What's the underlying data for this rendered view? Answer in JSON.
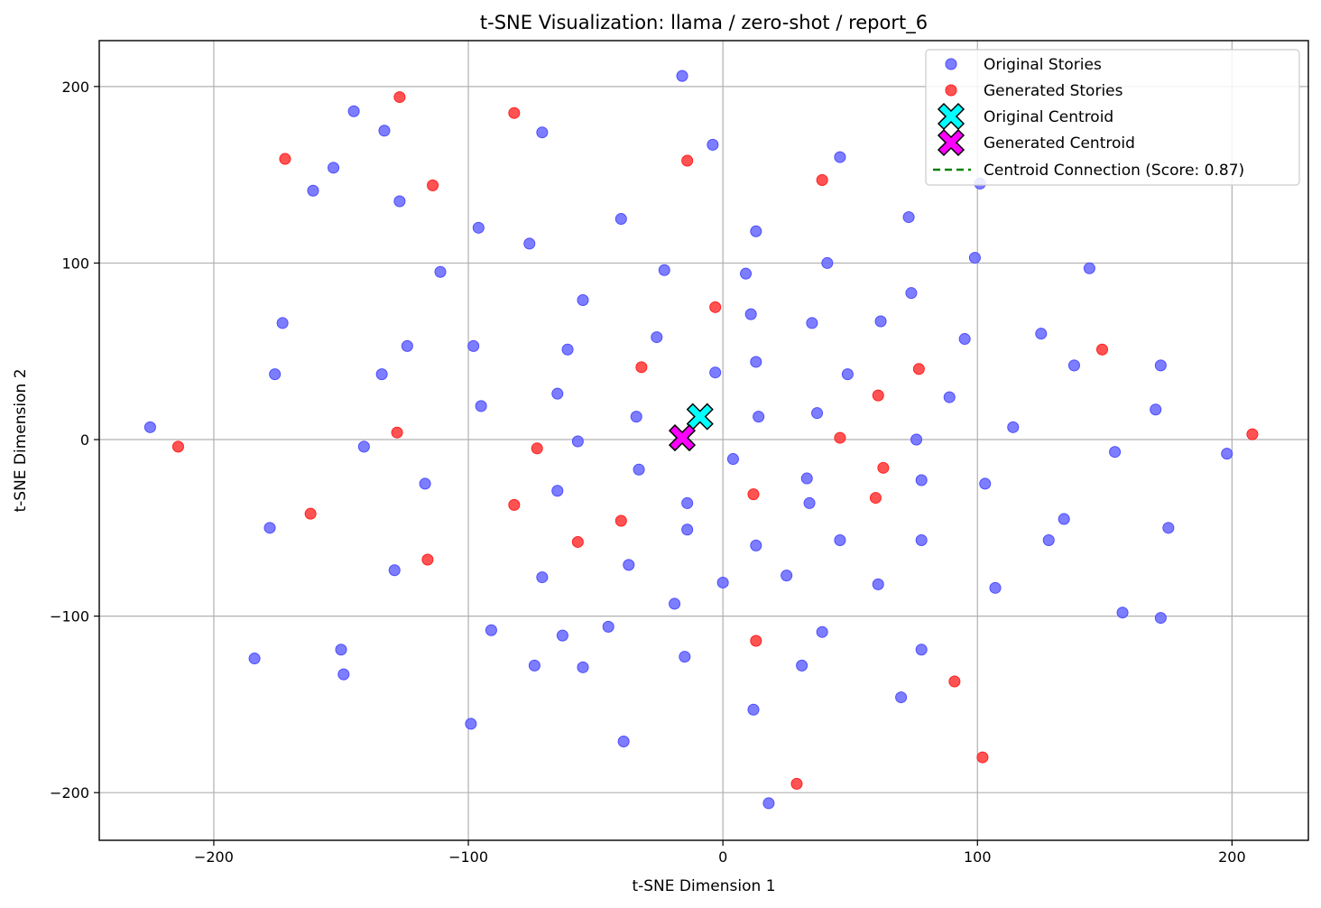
{
  "chart_data": {
    "type": "scatter",
    "title": "t-SNE Visualization: llama / zero-shot / report_6",
    "xlabel": "t-SNE Dimension 1",
    "ylabel": "t-SNE Dimension 2",
    "xlim": [
      -245,
      230
    ],
    "ylim": [
      -227,
      226
    ],
    "xticks": [
      -200,
      -100,
      0,
      100,
      200
    ],
    "yticks": [
      -200,
      -100,
      0,
      100,
      200
    ],
    "xtick_labels": [
      "−200",
      "−100",
      "0",
      "100",
      "200"
    ],
    "ytick_labels": [
      "−200",
      "−100",
      "0",
      "100",
      "200"
    ],
    "grid": true,
    "legend_position": "top-right",
    "colors": {
      "original": "#6666ff",
      "generated": "#ff4040",
      "original_centroid": "#00ffff",
      "generated_centroid": "#ff00ff",
      "connection": "#008000"
    },
    "series": [
      {
        "name": "Original Stories",
        "points": [
          [
            -16,
            206
          ],
          [
            -4,
            167
          ],
          [
            -71,
            174
          ],
          [
            -133,
            175
          ],
          [
            -145,
            186
          ],
          [
            -153,
            154
          ],
          [
            -161,
            141
          ],
          [
            -127,
            135
          ],
          [
            46,
            160
          ],
          [
            101,
            145
          ],
          [
            -96,
            120
          ],
          [
            -76,
            111
          ],
          [
            -40,
            125
          ],
          [
            13,
            118
          ],
          [
            73,
            126
          ],
          [
            -111,
            95
          ],
          [
            -23,
            96
          ],
          [
            9,
            94
          ],
          [
            41,
            100
          ],
          [
            99,
            103
          ],
          [
            144,
            97
          ],
          [
            -55,
            79
          ],
          [
            -173,
            66
          ],
          [
            11,
            71
          ],
          [
            35,
            66
          ],
          [
            62,
            67
          ],
          [
            74,
            83
          ],
          [
            -26,
            58
          ],
          [
            -98,
            53
          ],
          [
            -61,
            51
          ],
          [
            -124,
            53
          ],
          [
            95,
            57
          ],
          [
            125,
            60
          ],
          [
            -176,
            37
          ],
          [
            -134,
            37
          ],
          [
            -3,
            38
          ],
          [
            13,
            44
          ],
          [
            49,
            37
          ],
          [
            138,
            42
          ],
          [
            172,
            42
          ],
          [
            -95,
            19
          ],
          [
            -65,
            26
          ],
          [
            89,
            24
          ],
          [
            -225,
            7
          ],
          [
            -34,
            13
          ],
          [
            14,
            13
          ],
          [
            37,
            15
          ],
          [
            114,
            7
          ],
          [
            170,
            17
          ],
          [
            -141,
            -4
          ],
          [
            -57,
            -1
          ],
          [
            76,
            0
          ],
          [
            -33,
            -17
          ],
          [
            4,
            -11
          ],
          [
            33,
            -22
          ],
          [
            78,
            -23
          ],
          [
            154,
            -7
          ],
          [
            198,
            -8
          ],
          [
            -117,
            -25
          ],
          [
            -65,
            -29
          ],
          [
            -14,
            -36
          ],
          [
            34,
            -36
          ],
          [
            103,
            -25
          ],
          [
            -178,
            -50
          ],
          [
            -14,
            -51
          ],
          [
            13,
            -60
          ],
          [
            46,
            -57
          ],
          [
            78,
            -57
          ],
          [
            134,
            -45
          ],
          [
            128,
            -57
          ],
          [
            175,
            -50
          ],
          [
            -129,
            -74
          ],
          [
            -71,
            -78
          ],
          [
            -37,
            -71
          ],
          [
            25,
            -77
          ],
          [
            0,
            -81
          ],
          [
            61,
            -82
          ],
          [
            107,
            -84
          ],
          [
            157,
            -98
          ],
          [
            172,
            -101
          ],
          [
            -19,
            -93
          ],
          [
            -45,
            -106
          ],
          [
            -91,
            -108
          ],
          [
            -63,
            -111
          ],
          [
            39,
            -109
          ],
          [
            -184,
            -124
          ],
          [
            -150,
            -119
          ],
          [
            -149,
            -133
          ],
          [
            -74,
            -128
          ],
          [
            -55,
            -129
          ],
          [
            -15,
            -123
          ],
          [
            31,
            -128
          ],
          [
            78,
            -119
          ],
          [
            70,
            -146
          ],
          [
            12,
            -153
          ],
          [
            -99,
            -161
          ],
          [
            -39,
            -171
          ],
          [
            18,
            -206
          ]
        ]
      },
      {
        "name": "Generated Stories",
        "points": [
          [
            -127,
            194
          ],
          [
            -82,
            185
          ],
          [
            -172,
            159
          ],
          [
            -114,
            144
          ],
          [
            -14,
            158
          ],
          [
            39,
            147
          ],
          [
            -3,
            75
          ],
          [
            -32,
            41
          ],
          [
            77,
            40
          ],
          [
            149,
            51
          ],
          [
            61,
            25
          ],
          [
            -128,
            4
          ],
          [
            -73,
            -5
          ],
          [
            -214,
            -4
          ],
          [
            46,
            1
          ],
          [
            208,
            3
          ],
          [
            63,
            -16
          ],
          [
            12,
            -31
          ],
          [
            60,
            -33
          ],
          [
            -82,
            -37
          ],
          [
            -162,
            -42
          ],
          [
            -40,
            -46
          ],
          [
            -57,
            -58
          ],
          [
            -116,
            -68
          ],
          [
            13,
            -114
          ],
          [
            91,
            -137
          ],
          [
            102,
            -180
          ],
          [
            29,
            -195
          ]
        ]
      }
    ],
    "centroids": {
      "original": {
        "name": "Original Centroid",
        "x": -9,
        "y": 13
      },
      "generated": {
        "name": "Generated Centroid",
        "x": -16,
        "y": 1
      },
      "connection": {
        "name": "Centroid Connection (Score: 0.87)"
      }
    }
  }
}
